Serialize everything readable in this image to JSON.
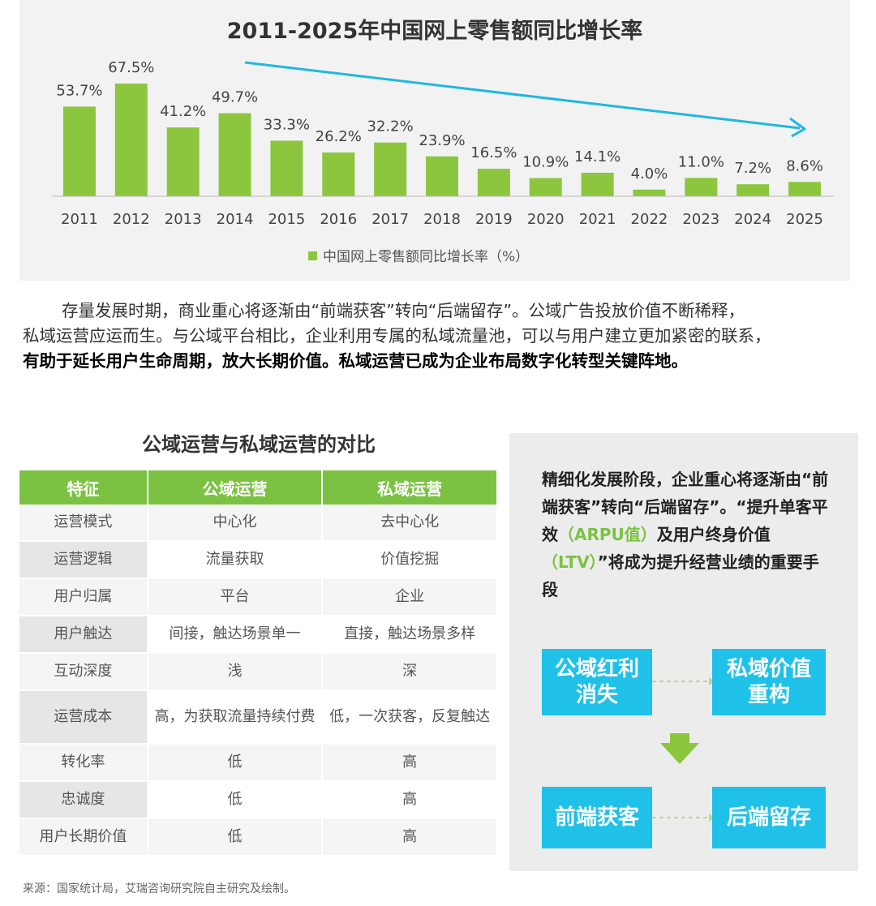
{
  "chart_data": {
    "type": "bar",
    "title": "2011-2025年中国网上零售额同比增长率",
    "categories": [
      "2011",
      "2012",
      "2013",
      "2014",
      "2015",
      "2016",
      "2017",
      "2018",
      "2019",
      "2020",
      "2021",
      "2022",
      "2023",
      "2024",
      "2025"
    ],
    "series": [
      {
        "name": "中国网上零售额同比增长率（%）",
        "values": [
          53.7,
          67.5,
          41.2,
          49.7,
          33.3,
          26.2,
          32.2,
          23.9,
          16.5,
          10.9,
          14.1,
          4.0,
          11.0,
          7.2,
          8.6
        ]
      }
    ],
    "value_labels": [
      "53.7%",
      "67.5%",
      "41.2%",
      "49.7%",
      "33.3%",
      "26.2%",
      "32.2%",
      "23.9%",
      "16.5%",
      "10.9%",
      "14.1%",
      "4.0%",
      "11.0%",
      "7.2%",
      "8.6%"
    ],
    "ylim": [
      0,
      70
    ],
    "grid": false,
    "legend_position": "bottom",
    "bar_color": "#8cc63f",
    "trend_arrow_color": "#1fb8e0"
  },
  "paragraph": {
    "line1": "存量发展时期，商业重心将逐渐由“前端获客”转向“后端留存”。公域广告投放价值不断稀释，",
    "line2": "私域运营应运而生。与公域平台相比，企业利用专属的私域流量池，可以与用户建立更加紧密的联系，",
    "line3": "有助于延长用户生命周期，放大长期价值。私域运营已成为企业布局数字化转型关键阵地。"
  },
  "comparison": {
    "title": "公域运营与私域运营的对比",
    "headers": [
      "特征",
      "公域运营",
      "私域运营"
    ],
    "rows": [
      [
        "运营模式",
        "中心化",
        "去中心化"
      ],
      [
        "运营逻辑",
        "流量获取",
        "价值挖掘"
      ],
      [
        "用户归属",
        "平台",
        "企业"
      ],
      [
        "用户触达",
        "间接，触达场景单一",
        "直接，触达场景多样"
      ],
      [
        "互动深度",
        "浅",
        "深"
      ],
      [
        "运营成本",
        "高，为获取流量持续付费",
        "低，一次获客，反复触达"
      ],
      [
        "转化率",
        "低",
        "高"
      ],
      [
        "忠诚度",
        "低",
        "高"
      ],
      [
        "用户长期价值",
        "低",
        "高"
      ]
    ],
    "header_color": "#7cc242"
  },
  "side_panel": {
    "text_a": "精细化发展阶段，企业重心将逐渐由“前端获客”转向“后端留存”。“提升单客平效",
    "text_arpu": "（ARPU值）",
    "text_b": "及用户终身价值",
    "text_ltv": "（LTV）",
    "text_c": "”将成为提升经营业绩的重要手段",
    "box_public_line1": "公域红利",
    "box_public_line2": "消失",
    "box_private_line1": "私域价值",
    "box_private_line2": "重构",
    "box_front": "前端获客",
    "box_back": "后端留存",
    "box_color": "#1fc1e9",
    "arrow_color": "#8cc63f"
  },
  "source": "来源：国家统计局，艾瑞咨询研究院自主研究及绘制。"
}
